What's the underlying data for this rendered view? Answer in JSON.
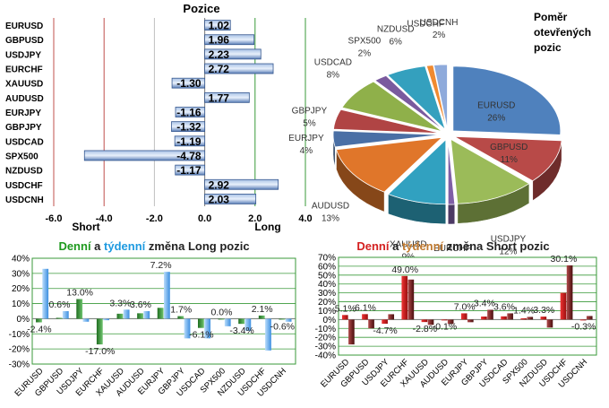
{
  "colors": {
    "bar_blue": "#6f94cc",
    "bar_blue_dark": "#36588f",
    "grid_red": "#c0504d",
    "grid_green": "#3a9a3a",
    "grid_gray": "#bfbfbf",
    "long_daily": "#2e8b2e",
    "long_weekly": "#5aaaf0",
    "short_daily": "#cc1111",
    "short_weekly": "#7a1a1a",
    "title_green": "#1f9a1f",
    "title_blue": "#1e9ae0",
    "title_red": "#d42020",
    "title_brown": "#c07a30"
  },
  "positions": {
    "title": "Pozice",
    "short_label": "Short",
    "long_label": "Long",
    "chart_data": {
      "type": "bar",
      "orientation": "horizontal",
      "categories": [
        "EURUSD",
        "GBPUSD",
        "USDJPY",
        "EURCHF",
        "XAUUSD",
        "AUDUSD",
        "EURJPY",
        "GBPJPY",
        "USDCAD",
        "SPX500",
        "NZDUSD",
        "USDCHF",
        "USDCNH"
      ],
      "values": [
        1.02,
        1.96,
        2.23,
        2.72,
        -1.3,
        1.77,
        -1.16,
        -1.32,
        -1.19,
        -4.78,
        -1.17,
        2.92,
        2.03
      ],
      "value_labels": [
        "1.02",
        "1.96",
        "2.23",
        "2.72",
        "-1.30",
        "1.77",
        "-1.16",
        "-1.32",
        "-1.19",
        "-4.78",
        "-1.17",
        "2.92",
        "2.03"
      ],
      "xlim": [
        -6,
        4
      ],
      "xticks": [
        "-6.0",
        "-4.0",
        "-2.0",
        "0.0",
        "2.0",
        "4.0"
      ],
      "xtick_values": [
        -6,
        -4,
        -2,
        0,
        2,
        4
      ]
    }
  },
  "pie": {
    "title_lines": [
      "Poměr",
      "otevřených",
      "pozic"
    ],
    "chart_data": {
      "type": "pie",
      "slices": [
        {
          "name": "EURUSD",
          "value": 26,
          "label": "26%",
          "color": "#4f81bd"
        },
        {
          "name": "GBPUSD",
          "value": 11,
          "label": "11%",
          "color": "#b84a48"
        },
        {
          "name": "USDJPY",
          "value": 12,
          "label": "12%",
          "color": "#9bbb59"
        },
        {
          "name": "EURCHF",
          "value": 1,
          "label": "1%",
          "color": "#7f5fa6"
        },
        {
          "name": "XAUUSD",
          "value": 9,
          "label": "9%",
          "color": "#31a1c0"
        },
        {
          "name": "AUDUSD",
          "value": 13,
          "label": "13%",
          "color": "#e0762a"
        },
        {
          "name": "EURJPY",
          "value": 4,
          "label": "4%",
          "color": "#4a6fa5"
        },
        {
          "name": "GBPJPY",
          "value": 5,
          "label": "5%",
          "color": "#b04444"
        },
        {
          "name": "USDCAD",
          "value": 8,
          "label": "8%",
          "color": "#8fb04a"
        },
        {
          "name": "SPX500",
          "value": 2,
          "label": "2%",
          "color": "#7a5a9e"
        },
        {
          "name": "NZDUSD",
          "value": 6,
          "label": "6%",
          "color": "#34a0be"
        },
        {
          "name": "USDCHF",
          "value": 1,
          "label": "",
          "color": "#f08a30"
        },
        {
          "name": "USDCNH",
          "value": 2,
          "label": "2%",
          "color": "#8eaadb"
        }
      ]
    }
  },
  "long_chart": {
    "title_parts": [
      "Denní",
      " a ",
      "týdenní",
      " změna Long pozic"
    ],
    "chart_data": {
      "type": "bar",
      "categories": [
        "EURUSD",
        "GBPUSD",
        "USDJPY",
        "EURCHF",
        "XAUUSD",
        "AUDUSD",
        "EURJPY",
        "GBPJPY",
        "USDCAD",
        "SPX500",
        "NZDUSD",
        "USDCHF",
        "USDCNH"
      ],
      "series": [
        {
          "name": "Denní",
          "values": [
            -2.4,
            0.6,
            13.0,
            -17.0,
            3.3,
            3.6,
            7.2,
            1.7,
            -6.1,
            0.0,
            -3.4,
            2.1,
            -0.6
          ]
        },
        {
          "name": "týdenní",
          "values": [
            33,
            5,
            -2,
            -1,
            6,
            5,
            31,
            -13,
            -13,
            -5,
            -8,
            -21,
            -2
          ]
        }
      ],
      "data_labels": [
        "-2.4%",
        "0.6%",
        "13.0%",
        "-17.0%",
        "3.3%",
        "3.6%",
        "7.2%",
        "1.7%",
        "-6.1%",
        "0.0%",
        "-3.4%",
        "2.1%",
        "-0.6%"
      ],
      "ylim": [
        -30,
        40
      ],
      "yticks": [
        "-30%",
        "-20%",
        "-10%",
        "0%",
        "10%",
        "20%",
        "30%",
        "40%"
      ],
      "ytick_values": [
        -30,
        -20,
        -10,
        0,
        10,
        20,
        30,
        40
      ]
    }
  },
  "short_chart": {
    "title_parts": [
      "Denní",
      " a ",
      "týdenní",
      " změna Short pozic"
    ],
    "chart_data": {
      "type": "bar",
      "categories": [
        "EURUSD",
        "GBPUSD",
        "USDJPY",
        "EURCHF",
        "XAUUSD",
        "AUDUSD",
        "EURJPY",
        "GBPJPY",
        "USDCAD",
        "SPX500",
        "NZDUSD",
        "USDCHF",
        "USDCNH"
      ],
      "series": [
        {
          "name": "Denní",
          "values": [
            5.1,
            6.1,
            -4.7,
            49.0,
            -2.8,
            -0.1,
            7.0,
            3.4,
            3.6,
            1.4,
            3.3,
            30.1,
            -0.3
          ]
        },
        {
          "name": "týdenní",
          "values": [
            -28,
            -10,
            6,
            45,
            -6,
            -5,
            -3,
            11,
            7,
            3,
            -9,
            61,
            4
          ]
        }
      ],
      "data_labels": [
        "5.1%",
        "6.1%",
        "-4.7%",
        "49.0%",
        "-2.8%",
        "-0.1%",
        "7.0%",
        "3.4%",
        "3.6%",
        "1.4%",
        "3.3%",
        "30.1%",
        "-0.3%"
      ],
      "ylim": [
        -40,
        70
      ],
      "yticks": [
        "-40%",
        "-30%",
        "-20%",
        "-10%",
        "0%",
        "10%",
        "20%",
        "30%",
        "40%",
        "50%",
        "60%",
        "70%"
      ],
      "ytick_values": [
        -40,
        -30,
        -20,
        -10,
        0,
        10,
        20,
        30,
        40,
        50,
        60,
        70
      ]
    }
  }
}
